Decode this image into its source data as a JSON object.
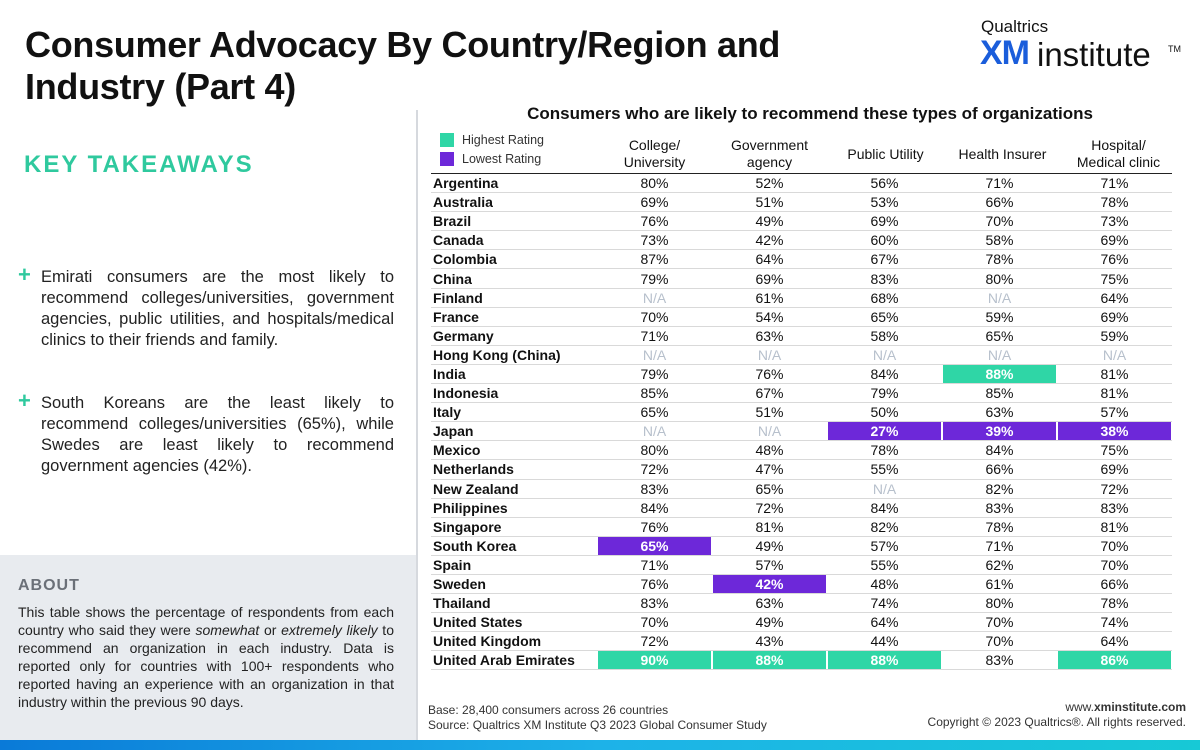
{
  "title": "Consumer Advocacy By Country/Region and Industry (Part 4)",
  "logo": {
    "company": "Qualtrics",
    "xm": "XM",
    "institute": "institute",
    "tm": "TM"
  },
  "takeaways": {
    "heading": "KEY TAKEAWAYS",
    "bullets": [
      "Emirati consumers are the most likely to recommend colleges/universities, government agencies, public utilities, and hospitals/medical clinics to their friends and family.",
      "South Koreans are the least likely to recommend colleges/universities (65%), while Swedes are least likely to recommend government agencies (42%)."
    ]
  },
  "about": {
    "heading": "ABOUT",
    "text_1": "This table shows the percentage of respondents from each country who said they were ",
    "em_1": "somewhat",
    "text_2": " or ",
    "em_2": "extremely likely",
    "text_3": " to recommend an organization in each industry. Data is reported only for countries with 100+ respondents who reported having an experience with an organization in that industry within the previous 90 days."
  },
  "colors": {
    "highest": "#2fd6a6",
    "lowest": "#6d28d9",
    "accent": "#2fc99e"
  },
  "chart_data": {
    "type": "table",
    "title": "Consumers who are likely to recommend these types of organizations",
    "legend": {
      "highest": "Highest Rating",
      "lowest": "Lowest Rating"
    },
    "columns": [
      "College/\nUniversity",
      "Government\nagency",
      "Public Utility",
      "Health Insurer",
      "Hospital/\nMedical clinic"
    ],
    "rows": [
      {
        "country": "Argentina",
        "values": [
          "80%",
          "52%",
          "56%",
          "71%",
          "71%"
        ]
      },
      {
        "country": "Australia",
        "values": [
          "69%",
          "51%",
          "53%",
          "66%",
          "78%"
        ]
      },
      {
        "country": "Brazil",
        "values": [
          "76%",
          "49%",
          "69%",
          "70%",
          "73%"
        ]
      },
      {
        "country": "Canada",
        "values": [
          "73%",
          "42%",
          "60%",
          "58%",
          "69%"
        ]
      },
      {
        "country": "Colombia",
        "values": [
          "87%",
          "64%",
          "67%",
          "78%",
          "76%"
        ]
      },
      {
        "country": "China",
        "values": [
          "79%",
          "69%",
          "83%",
          "80%",
          "75%"
        ]
      },
      {
        "country": "Finland",
        "values": [
          "N/A",
          "61%",
          "68%",
          "N/A",
          "64%"
        ]
      },
      {
        "country": "France",
        "values": [
          "70%",
          "54%",
          "65%",
          "59%",
          "69%"
        ]
      },
      {
        "country": "Germany",
        "values": [
          "71%",
          "63%",
          "58%",
          "65%",
          "59%"
        ]
      },
      {
        "country": "Hong Kong (China)",
        "values": [
          "N/A",
          "N/A",
          "N/A",
          "N/A",
          "N/A"
        ]
      },
      {
        "country": "India",
        "values": [
          "79%",
          "76%",
          "84%",
          "88%",
          "81%"
        ]
      },
      {
        "country": "Indonesia",
        "values": [
          "85%",
          "67%",
          "79%",
          "85%",
          "81%"
        ]
      },
      {
        "country": "Italy",
        "values": [
          "65%",
          "51%",
          "50%",
          "63%",
          "57%"
        ]
      },
      {
        "country": "Japan",
        "values": [
          "N/A",
          "N/A",
          "27%",
          "39%",
          "38%"
        ]
      },
      {
        "country": "Mexico",
        "values": [
          "80%",
          "48%",
          "78%",
          "84%",
          "75%"
        ]
      },
      {
        "country": "Netherlands",
        "values": [
          "72%",
          "47%",
          "55%",
          "66%",
          "69%"
        ]
      },
      {
        "country": "New Zealand",
        "values": [
          "83%",
          "65%",
          "N/A",
          "82%",
          "72%"
        ]
      },
      {
        "country": "Philippines",
        "values": [
          "84%",
          "72%",
          "84%",
          "83%",
          "83%"
        ]
      },
      {
        "country": "Singapore",
        "values": [
          "76%",
          "81%",
          "82%",
          "78%",
          "81%"
        ]
      },
      {
        "country": "South Korea",
        "values": [
          "65%",
          "49%",
          "57%",
          "71%",
          "70%"
        ]
      },
      {
        "country": "Spain",
        "values": [
          "71%",
          "57%",
          "55%",
          "62%",
          "70%"
        ]
      },
      {
        "country": "Sweden",
        "values": [
          "76%",
          "42%",
          "48%",
          "61%",
          "66%"
        ]
      },
      {
        "country": "Thailand",
        "values": [
          "83%",
          "63%",
          "74%",
          "80%",
          "78%"
        ]
      },
      {
        "country": "United States",
        "values": [
          "70%",
          "49%",
          "64%",
          "70%",
          "74%"
        ]
      },
      {
        "country": "United Kingdom",
        "values": [
          "72%",
          "43%",
          "44%",
          "70%",
          "64%"
        ]
      },
      {
        "country": "United Arab Emirates",
        "values": [
          "90%",
          "88%",
          "88%",
          "83%",
          "86%"
        ]
      }
    ],
    "highlights": {
      "highest": [
        [
          "India",
          3
        ],
        [
          "United Arab Emirates",
          0
        ],
        [
          "United Arab Emirates",
          1
        ],
        [
          "United Arab Emirates",
          2
        ],
        [
          "United Arab Emirates",
          4
        ]
      ],
      "lowest": [
        [
          "Japan",
          2
        ],
        [
          "Japan",
          3
        ],
        [
          "Japan",
          4
        ],
        [
          "South Korea",
          0
        ],
        [
          "Sweden",
          1
        ]
      ]
    }
  },
  "footer": {
    "base": "Base: 28,400 consumers across 26 countries",
    "source": "Source: Qualtrics XM Institute Q3 2023 Global Consumer Study",
    "site_prefix": "www.",
    "site_domain": "xminstitute.com",
    "copyright": "Copyright © 2023 Qualtrics®. All rights reserved."
  }
}
